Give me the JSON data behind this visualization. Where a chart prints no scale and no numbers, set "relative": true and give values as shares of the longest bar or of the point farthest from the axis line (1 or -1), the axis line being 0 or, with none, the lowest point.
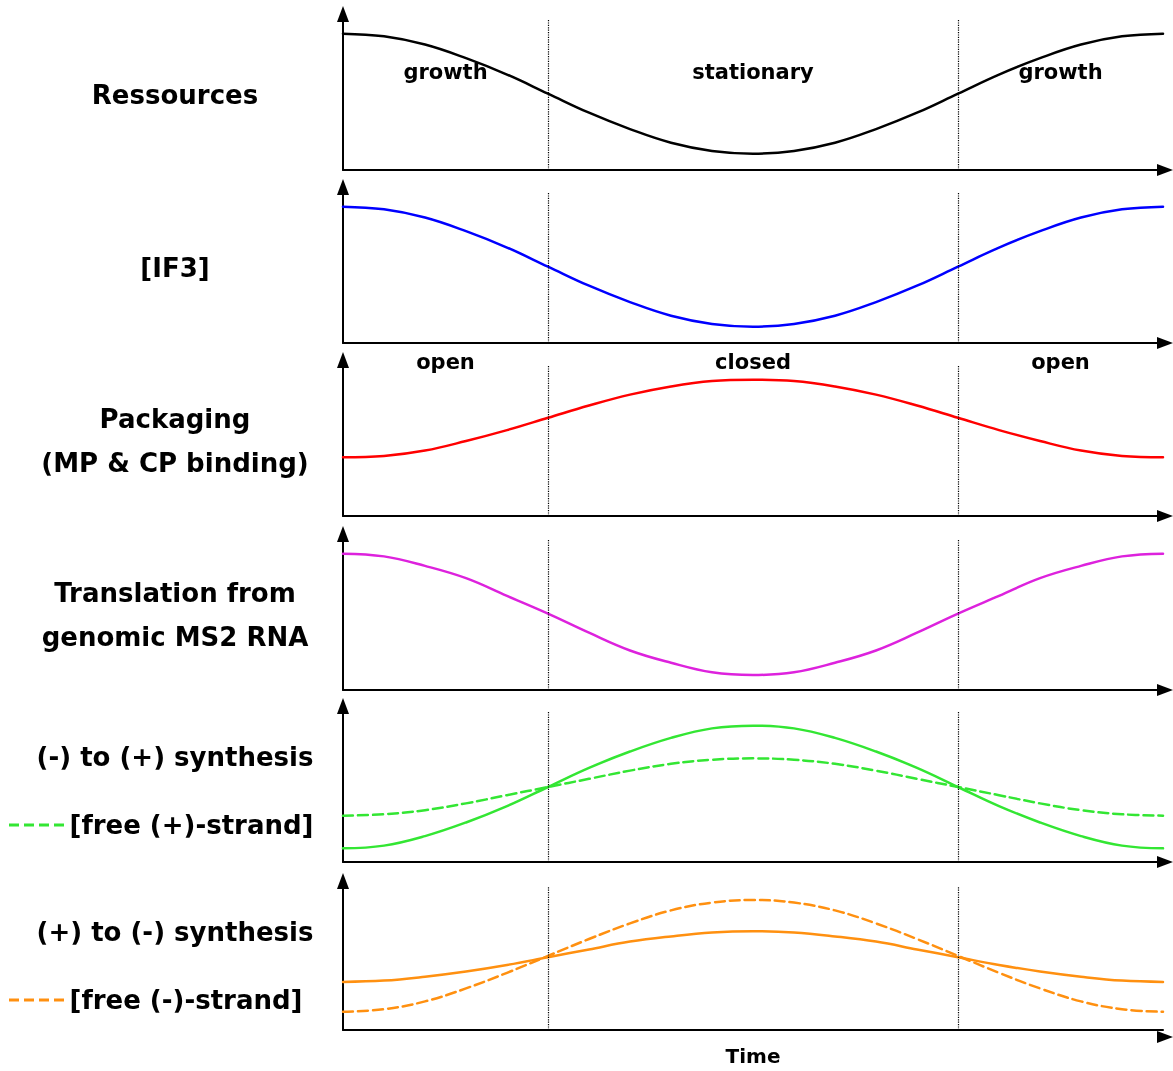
{
  "chart_data": [
    {
      "type": "line",
      "ylabel": "Ressources",
      "relative": true,
      "marker": "none",
      "categories": [
        null,
        null,
        null,
        null,
        null,
        null,
        null,
        null,
        null,
        null,
        null,
        null,
        null,
        null,
        null,
        null,
        null,
        null,
        null,
        null,
        null
      ],
      "series": [
        {
          "color": "#000000",
          "line_style": "solid",
          "values": [
            1,
            0.98,
            0.92,
            0.82,
            0.7,
            0.56,
            0.42,
            0.3,
            0.2,
            0.14,
            0.12,
            0.14,
            0.2,
            0.3,
            0.42,
            0.56,
            0.7,
            0.82,
            0.92,
            0.98,
            1
          ]
        }
      ],
      "annotations": [
        "growth",
        "stationary",
        "growth"
      ]
    },
    {
      "type": "line",
      "ylabel": "[IF3]",
      "relative": true,
      "marker": "none",
      "categories": [
        null,
        null,
        null,
        null,
        null,
        null,
        null,
        null,
        null,
        null,
        null,
        null,
        null,
        null,
        null,
        null,
        null,
        null,
        null,
        null,
        null
      ],
      "series": [
        {
          "color": "#0000ff",
          "line_style": "solid",
          "values": [
            1,
            0.98,
            0.92,
            0.82,
            0.7,
            0.56,
            0.42,
            0.3,
            0.2,
            0.14,
            0.12,
            0.14,
            0.2,
            0.3,
            0.42,
            0.56,
            0.7,
            0.82,
            0.92,
            0.98,
            1
          ]
        }
      ]
    },
    {
      "type": "line",
      "ylabel": "Packaging\n(MP & CP binding)",
      "relative": true,
      "marker": "none",
      "categories": [
        null,
        null,
        null,
        null,
        null,
        null,
        null,
        null,
        null,
        null,
        null,
        null,
        null,
        null,
        null,
        null,
        null,
        null,
        null,
        null,
        null
      ],
      "series": [
        {
          "color": "#ff0000",
          "line_style": "solid",
          "values": [
            0.43,
            0.44,
            0.48,
            0.55,
            0.63,
            0.72,
            0.81,
            0.89,
            0.95,
            0.99,
            1,
            0.99,
            0.95,
            0.89,
            0.81,
            0.72,
            0.63,
            0.55,
            0.48,
            0.44,
            0.43
          ]
        }
      ],
      "annotations": [
        "open",
        "closed",
        "open"
      ]
    },
    {
      "type": "line",
      "ylabel": "Translation from\ngenomic MS2 RNA",
      "relative": true,
      "marker": "none",
      "categories": [
        null,
        null,
        null,
        null,
        null,
        null,
        null,
        null,
        null,
        null,
        null,
        null,
        null,
        null,
        null,
        null,
        null,
        null,
        null,
        null,
        null
      ],
      "series": [
        {
          "color": "#dd22dd",
          "line_style": "solid",
          "values": [
            1,
            0.98,
            0.91,
            0.82,
            0.69,
            0.56,
            0.42,
            0.29,
            0.2,
            0.13,
            0.11,
            0.13,
            0.2,
            0.29,
            0.42,
            0.56,
            0.69,
            0.82,
            0.91,
            0.98,
            1
          ]
        }
      ]
    },
    {
      "type": "line",
      "ylabel": "(-) to (+) synthesis",
      "relative": true,
      "marker": "none",
      "legend": "left",
      "categories": [
        null,
        null,
        null,
        null,
        null,
        null,
        null,
        null,
        null,
        null,
        null,
        null,
        null,
        null,
        null,
        null,
        null,
        null,
        null,
        null,
        null
      ],
      "series": [
        {
          "color": "#33e633",
          "line_style": "solid",
          "values": [
            0.1,
            0.12,
            0.19,
            0.29,
            0.41,
            0.55,
            0.69,
            0.81,
            0.91,
            0.98,
            1,
            0.98,
            0.91,
            0.81,
            0.69,
            0.55,
            0.41,
            0.29,
            0.19,
            0.12,
            0.1
          ]
        },
        {
          "name": "[free (+)-strand]",
          "color": "#33e633",
          "line_style": "dashed",
          "values": [
            0.34,
            0.35,
            0.38,
            0.43,
            0.49,
            0.55,
            0.61,
            0.67,
            0.72,
            0.75,
            0.76,
            0.75,
            0.72,
            0.67,
            0.61,
            0.55,
            0.49,
            0.43,
            0.38,
            0.35,
            0.34
          ]
        }
      ]
    },
    {
      "type": "line",
      "ylabel": "(+) to (-) synthesis",
      "xlabel": "Time",
      "relative": true,
      "marker": "none",
      "legend": "left",
      "categories": [
        null,
        null,
        null,
        null,
        null,
        null,
        null,
        null,
        null,
        null,
        null,
        null,
        null,
        null,
        null,
        null,
        null,
        null,
        null,
        null,
        null
      ],
      "series": [
        {
          "color": "#ff9010",
          "line_style": "solid",
          "values": [
            0.37,
            0.38,
            0.41,
            0.45,
            0.5,
            0.56,
            0.62,
            0.68,
            0.72,
            0.75,
            0.76,
            0.75,
            0.72,
            0.68,
            0.62,
            0.56,
            0.5,
            0.45,
            0.41,
            0.38,
            0.37
          ]
        },
        {
          "name": "[free (-)-strand]",
          "color": "#ff9010",
          "line_style": "dashed",
          "values": [
            0.14,
            0.16,
            0.22,
            0.32,
            0.44,
            0.57,
            0.7,
            0.82,
            0.92,
            0.98,
            1,
            0.98,
            0.92,
            0.82,
            0.7,
            0.57,
            0.44,
            0.32,
            0.22,
            0.16,
            0.14
          ]
        }
      ]
    }
  ]
}
